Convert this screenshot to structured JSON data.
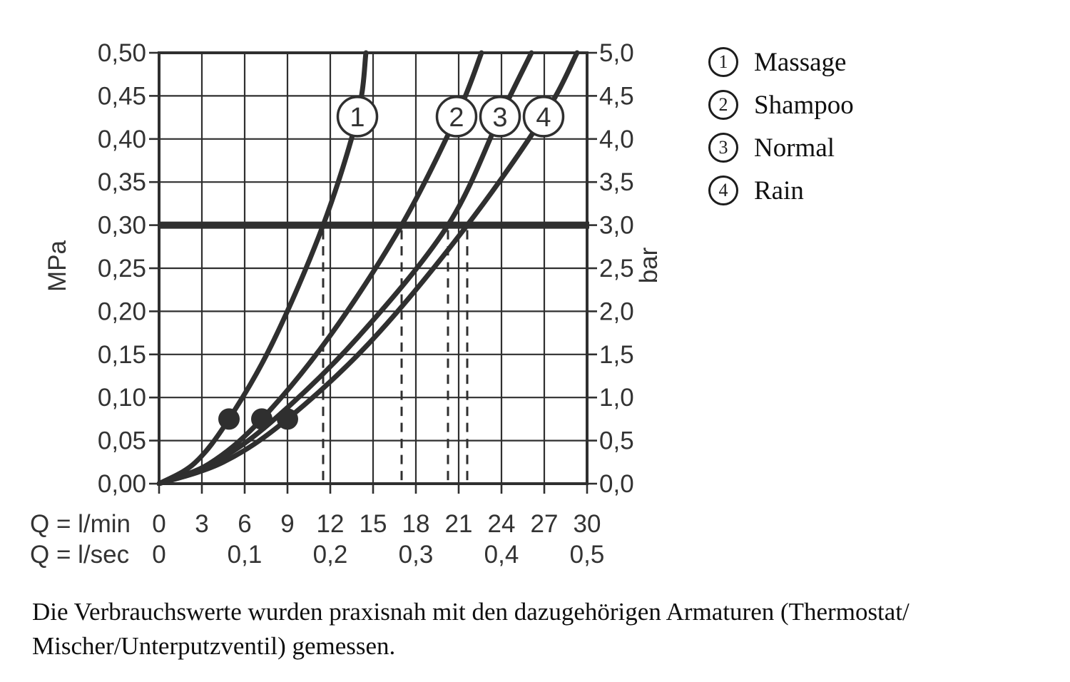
{
  "page": {
    "background": "#ffffff",
    "ink": "#2f2f2f",
    "label_color": "#333333"
  },
  "chart_data": {
    "type": "line",
    "title": "",
    "x_axis": {
      "row1_label": "Q = l/min",
      "row1_ticks": [
        0,
        3,
        6,
        9,
        12,
        15,
        18,
        21,
        24,
        27,
        30
      ],
      "row2_label": "Q = l/sec",
      "row2_ticks": [
        {
          "q": 0,
          "label": "0"
        },
        {
          "q": 6,
          "label": "0,1"
        },
        {
          "q": 12,
          "label": "0,2"
        },
        {
          "q": 18,
          "label": "0,3"
        },
        {
          "q": 24,
          "label": "0,4"
        },
        {
          "q": 30,
          "label": "0,5"
        }
      ],
      "range": [
        0,
        30
      ],
      "gridline_step": 3
    },
    "y_axis_left": {
      "label": "MPa",
      "ticks": [
        "0,50",
        "0,45",
        "0,40",
        "0,35",
        "0,30",
        "0,25",
        "0,20",
        "0,15",
        "0,10",
        "0,05",
        "0,00"
      ],
      "range": [
        0,
        0.5
      ],
      "gridline_step": 0.05
    },
    "y_axis_right": {
      "label": "bar",
      "ticks": [
        "5,0",
        "4,5",
        "4,0",
        "3,5",
        "3,0",
        "2,5",
        "2,0",
        "1,5",
        "1,0",
        "0,5",
        "0,0"
      ],
      "range": [
        0,
        5
      ]
    },
    "grid": true,
    "legend_position": "right",
    "series": [
      {
        "number": "1",
        "name": "Massage",
        "points": [
          [
            0,
            0
          ],
          [
            2.5,
            0.024
          ],
          [
            4.9,
            0.075
          ],
          [
            8,
            0.165
          ],
          [
            11.5,
            0.3
          ],
          [
            13.9,
            0.426
          ],
          [
            14.5,
            0.5
          ]
        ],
        "flow_at_3bar_lmin": 11.5,
        "badge_at": [
          13.9,
          0.426
        ]
      },
      {
        "number": "2",
        "name": "Shampoo",
        "points": [
          [
            0,
            0
          ],
          [
            3.5,
            0.023
          ],
          [
            7.2,
            0.075
          ],
          [
            12,
            0.172
          ],
          [
            17,
            0.3
          ],
          [
            20.85,
            0.426
          ],
          [
            22.6,
            0.5
          ]
        ],
        "flow_at_3bar_lmin": 17.0,
        "badge_at": [
          20.85,
          0.426
        ]
      },
      {
        "number": "3",
        "name": "Normal",
        "points": [
          [
            0,
            0
          ],
          [
            4,
            0.026
          ],
          [
            8.1,
            0.075
          ],
          [
            14,
            0.171
          ],
          [
            20.25,
            0.3
          ],
          [
            23.9,
            0.426
          ],
          [
            26.1,
            0.5
          ]
        ],
        "flow_at_3bar_lmin": 20.25,
        "badge_at": [
          23.9,
          0.426
        ]
      },
      {
        "number": "4",
        "name": "Rain",
        "points": [
          [
            0,
            0
          ],
          [
            4.5,
            0.025
          ],
          [
            9,
            0.075
          ],
          [
            15,
            0.168
          ],
          [
            21.6,
            0.3
          ],
          [
            26.95,
            0.426
          ],
          [
            29.3,
            0.5
          ]
        ],
        "flow_at_3bar_lmin": 21.6,
        "badge_at": [
          26.95,
          0.426
        ]
      }
    ],
    "reference_line": {
      "mpa": 0.3,
      "bar": 3.0
    },
    "drop_lines_lmin": [
      11.5,
      17.0,
      20.25,
      21.6
    ],
    "markers_lmin_mpa": [
      [
        4.9,
        0.075
      ],
      [
        7.2,
        0.075
      ],
      [
        9.0,
        0.075
      ]
    ]
  },
  "footer": {
    "line1": "Die Verbrauchswerte wurden praxisnah mit den dazugehörigen Armaturen (Thermostat/",
    "line2": "Mischer/Unterputzventil) gemessen."
  }
}
